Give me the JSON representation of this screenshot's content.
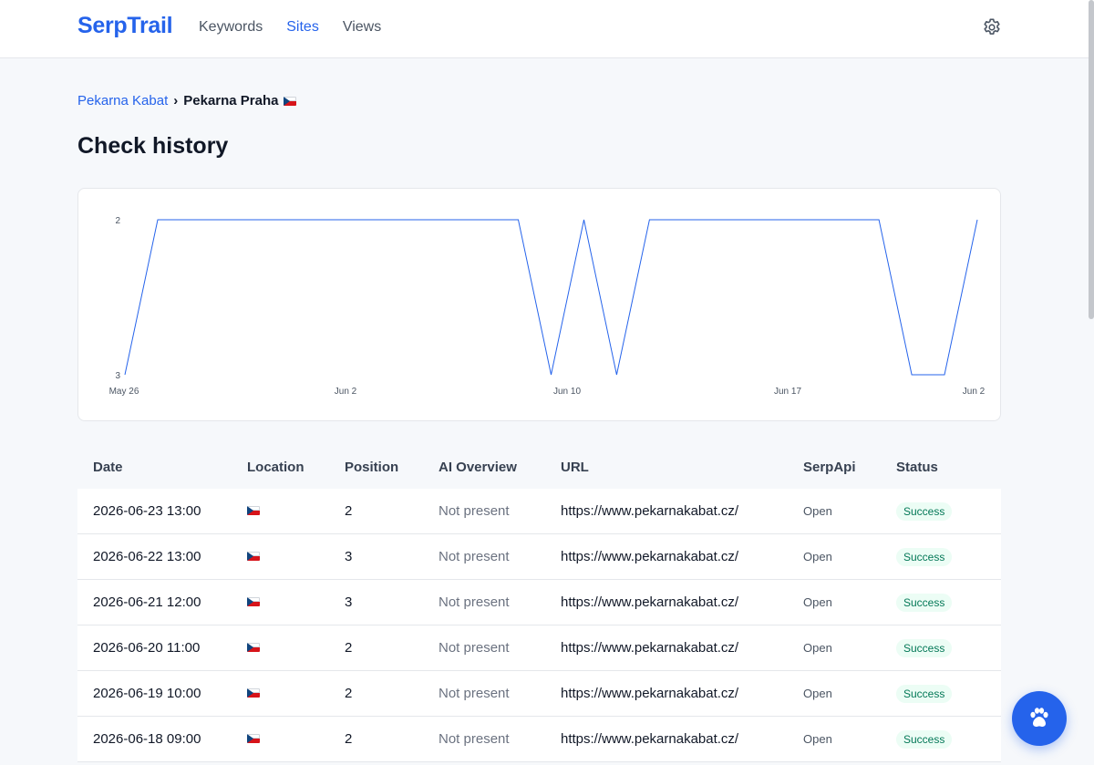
{
  "app": {
    "name": "SerpTrail"
  },
  "nav": {
    "items": [
      {
        "label": "Keywords",
        "active": false
      },
      {
        "label": "Sites",
        "active": true
      },
      {
        "label": "Views",
        "active": false
      }
    ]
  },
  "breadcrumb": {
    "parent": "Pekarna Kabat",
    "separator": "›",
    "current": "Pekarna Praha",
    "flag": "czech-flag-icon"
  },
  "page": {
    "title": "Check history"
  },
  "colors": {
    "accent": "#2563eb",
    "line": "#2563eb",
    "success_text": "#047857",
    "success_bg": "#ecfdf5"
  },
  "chart_data": {
    "type": "line",
    "y_axis": {
      "reversed": true,
      "ticks": [
        "2",
        "3"
      ],
      "range": [
        2,
        3
      ]
    },
    "x_ticks": [
      "May 26",
      "Jun 2",
      "Jun 10",
      "Jun 17",
      "Jun 2"
    ],
    "series": [
      {
        "values": [
          3,
          2,
          2,
          2,
          2,
          2,
          2,
          2,
          2,
          2,
          2,
          2,
          2,
          3,
          2,
          3,
          2,
          2,
          2,
          2,
          2,
          2,
          2,
          2,
          3,
          3,
          2
        ]
      }
    ]
  },
  "table": {
    "columns": [
      "Date",
      "Location",
      "Position",
      "AI Overview",
      "URL",
      "SerpApi",
      "Status"
    ],
    "rows": [
      {
        "date": "2026-06-23 13:00",
        "position": "2",
        "ai": "Not present",
        "url": "https://www.pekarnakabat.cz/",
        "serpapi": "Open",
        "status": "Success"
      },
      {
        "date": "2026-06-22 13:00",
        "position": "3",
        "ai": "Not present",
        "url": "https://www.pekarnakabat.cz/",
        "serpapi": "Open",
        "status": "Success"
      },
      {
        "date": "2026-06-21 12:00",
        "position": "3",
        "ai": "Not present",
        "url": "https://www.pekarnakabat.cz/",
        "serpapi": "Open",
        "status": "Success"
      },
      {
        "date": "2026-06-20 11:00",
        "position": "2",
        "ai": "Not present",
        "url": "https://www.pekarnakabat.cz/",
        "serpapi": "Open",
        "status": "Success"
      },
      {
        "date": "2026-06-19 10:00",
        "position": "2",
        "ai": "Not present",
        "url": "https://www.pekarnakabat.cz/",
        "serpapi": "Open",
        "status": "Success"
      },
      {
        "date": "2026-06-18 09:00",
        "position": "2",
        "ai": "Not present",
        "url": "https://www.pekarnakabat.cz/",
        "serpapi": "Open",
        "status": "Success"
      }
    ]
  },
  "icons": {
    "settings": "gear-icon",
    "fab": "paw-icon"
  }
}
